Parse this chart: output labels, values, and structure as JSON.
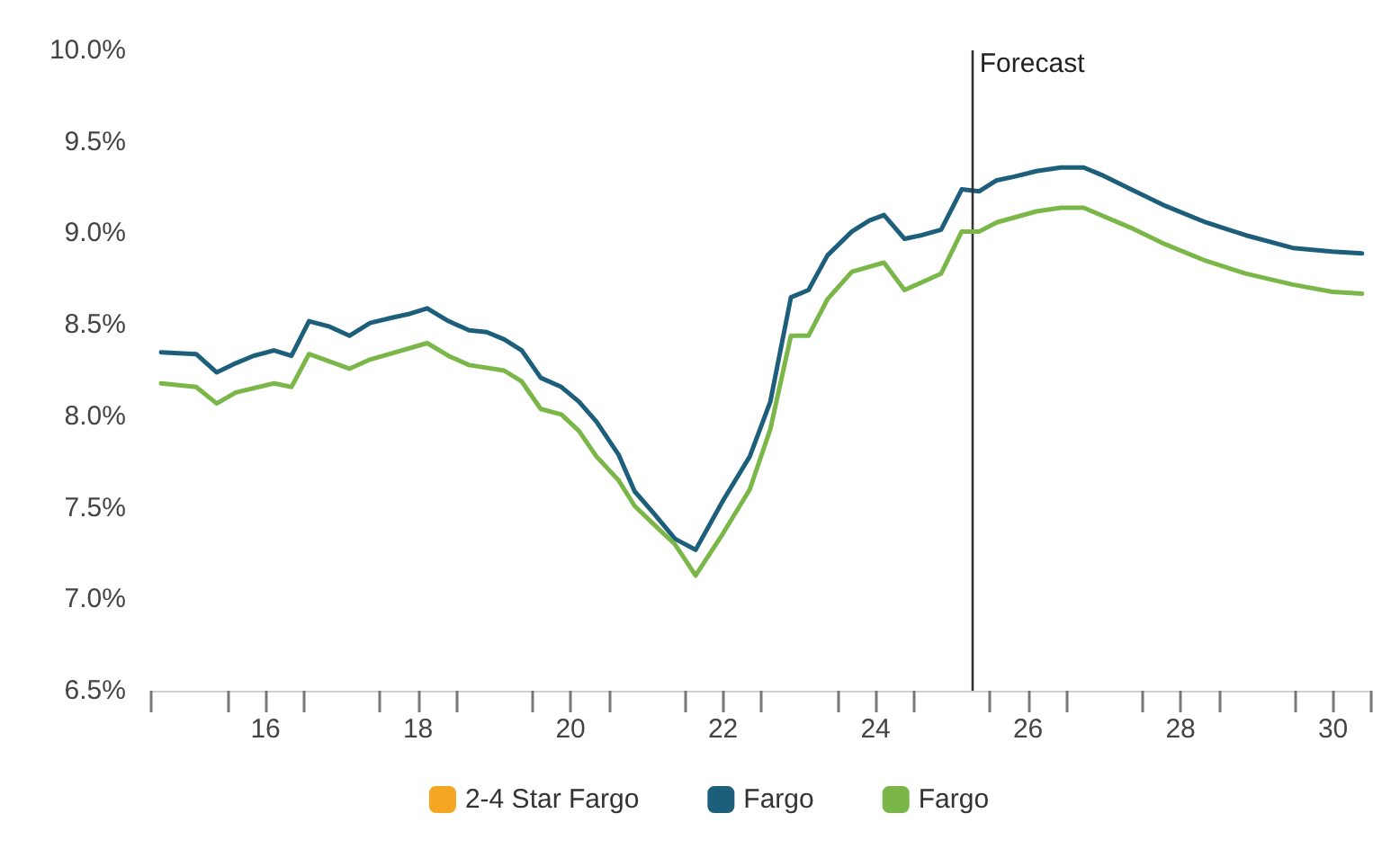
{
  "chart_data": {
    "type": "line",
    "xlim": [
      14.5,
      30.5
    ],
    "xticks": [
      {
        "value": 14.5,
        "label": null
      },
      {
        "value": 15.5,
        "label": null
      },
      16,
      {
        "value": 16.5,
        "label": null
      },
      {
        "value": 17.5,
        "label": null
      },
      18,
      {
        "value": 18.5,
        "label": null
      },
      {
        "value": 19.5,
        "label": null
      },
      20,
      {
        "value": 20.5,
        "label": null
      },
      {
        "value": 21.5,
        "label": null
      },
      22,
      {
        "value": 22.5,
        "label": null
      },
      {
        "value": 23.5,
        "label": null
      },
      24,
      {
        "value": 24.5,
        "label": null
      },
      {
        "value": 25.5,
        "label": null
      },
      26,
      {
        "value": 26.5,
        "label": null
      },
      {
        "value": 27.5,
        "label": null
      },
      28,
      {
        "value": 28.5,
        "label": null
      },
      {
        "value": 29.5,
        "label": null
      },
      30,
      {
        "value": 30.5,
        "label": null
      }
    ],
    "ylim": [
      6.5,
      10.0
    ],
    "yticks": [
      {
        "value": 6.5,
        "label": "6.5%"
      },
      {
        "value": 7.0,
        "label": "7.0%"
      },
      {
        "value": 7.5,
        "label": "7.5%"
      },
      {
        "value": 8.0,
        "label": "8.0%"
      },
      {
        "value": 8.5,
        "label": "8.5%"
      },
      {
        "value": 9.0,
        "label": "9.0%"
      },
      {
        "value": 9.5,
        "label": "9.5%"
      },
      {
        "value": 10.0,
        "label": "10.0%"
      }
    ],
    "grid": false,
    "legend": "bottom",
    "marker": "none",
    "line_style": "solid",
    "ref_lines": [
      {
        "axis": "x",
        "value": 25.27,
        "label": "Forecast",
        "color": "#333333"
      }
    ],
    "series": [
      {
        "name": "2-4 Star Fargo",
        "color": "#f5a623"
      },
      {
        "name": "Fargo",
        "color": "#1d5f7a",
        "x": [
          14.63,
          15.09,
          15.36,
          15.61,
          15.84,
          16.11,
          16.34,
          16.57,
          16.84,
          17.1,
          17.37,
          17.67,
          17.89,
          18.12,
          18.4,
          18.67,
          18.9,
          19.13,
          19.36,
          19.61,
          19.88,
          20.11,
          20.34,
          20.63,
          20.84,
          21.09,
          21.37,
          21.64,
          22.0,
          22.35,
          22.62,
          22.89,
          23.12,
          23.37,
          23.69,
          23.92,
          24.11,
          24.38,
          24.61,
          24.86,
          25.13,
          25.36,
          25.59,
          25.82,
          26.11,
          26.43,
          26.73,
          26.96,
          27.35,
          27.8,
          28.33,
          28.85,
          29.47,
          29.99,
          30.38
        ],
        "values": [
          8.35,
          8.34,
          8.24,
          8.29,
          8.33,
          8.36,
          8.33,
          8.52,
          8.49,
          8.44,
          8.51,
          8.54,
          8.56,
          8.59,
          8.52,
          8.47,
          8.46,
          8.42,
          8.36,
          8.21,
          8.16,
          8.08,
          7.97,
          7.79,
          7.59,
          7.47,
          7.33,
          7.27,
          7.54,
          7.78,
          8.08,
          8.65,
          8.69,
          8.88,
          9.01,
          9.07,
          9.1,
          8.97,
          8.99,
          9.02,
          9.24,
          9.23,
          9.29,
          9.31,
          9.34,
          9.36,
          9.36,
          9.32,
          9.24,
          9.15,
          9.06,
          8.99,
          8.92,
          8.9,
          8.89
        ]
      },
      {
        "name": "Fargo",
        "color": "#7ab648",
        "x": [
          14.63,
          15.09,
          15.36,
          15.61,
          16.11,
          16.34,
          16.57,
          17.1,
          17.37,
          18.12,
          18.4,
          18.67,
          19.13,
          19.36,
          19.61,
          19.88,
          20.11,
          20.34,
          20.63,
          20.84,
          21.09,
          21.37,
          21.64,
          22.0,
          22.35,
          22.62,
          22.89,
          23.12,
          23.37,
          23.69,
          24.11,
          24.38,
          24.86,
          25.13,
          25.36,
          25.59,
          26.11,
          26.43,
          26.73,
          27.35,
          27.8,
          28.33,
          28.85,
          29.47,
          29.99,
          30.38
        ],
        "values": [
          8.18,
          8.16,
          8.07,
          8.13,
          8.18,
          8.16,
          8.34,
          8.26,
          8.31,
          8.4,
          8.33,
          8.28,
          8.25,
          8.19,
          8.04,
          8.01,
          7.92,
          7.78,
          7.65,
          7.51,
          7.41,
          7.3,
          7.13,
          7.36,
          7.6,
          7.93,
          8.44,
          8.44,
          8.64,
          8.79,
          8.84,
          8.69,
          8.78,
          9.01,
          9.01,
          9.06,
          9.12,
          9.14,
          9.14,
          9.03,
          8.94,
          8.85,
          8.78,
          8.72,
          8.68,
          8.67
        ]
      }
    ]
  }
}
